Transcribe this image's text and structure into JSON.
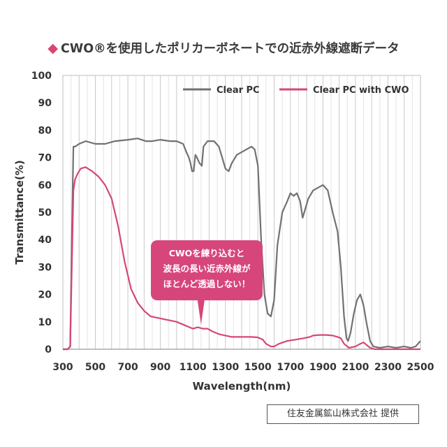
{
  "title": {
    "diamond_icon": "diamond-icon",
    "text": "CWO®を使用したポリカーボネートでの近赤外線遮断データ"
  },
  "credit": "住友金属鉱山株式会社 提供",
  "chart_data": {
    "type": "line",
    "title": "CWO®を使用したポリカーボネートでの近赤外線遮断データ",
    "xlabel": "Wavelength(nm)",
    "ylabel": "Transmittance(%)",
    "xlim": [
      300,
      2500
    ],
    "ylim": [
      0,
      100
    ],
    "xticks": [
      300,
      500,
      700,
      900,
      1100,
      1300,
      1500,
      1700,
      1900,
      2100,
      2300,
      2500
    ],
    "yticks": [
      0,
      10,
      20,
      30,
      40,
      50,
      60,
      70,
      80,
      90,
      100
    ],
    "grid": "vertical",
    "legend_position": "top-right",
    "series": [
      {
        "name": "Clear PC",
        "color": "#717171",
        "points": [
          [
            300,
            0
          ],
          [
            330,
            0
          ],
          [
            345,
            1
          ],
          [
            355,
            40
          ],
          [
            365,
            74
          ],
          [
            375,
            74
          ],
          [
            400,
            75
          ],
          [
            440,
            76
          ],
          [
            500,
            75
          ],
          [
            560,
            75
          ],
          [
            620,
            76
          ],
          [
            700,
            76.5
          ],
          [
            760,
            77
          ],
          [
            810,
            76
          ],
          [
            850,
            76
          ],
          [
            900,
            76.5
          ],
          [
            960,
            76
          ],
          [
            1000,
            76
          ],
          [
            1040,
            75
          ],
          [
            1060,
            72
          ],
          [
            1075,
            70
          ],
          [
            1085,
            68
          ],
          [
            1095,
            65
          ],
          [
            1105,
            65
          ],
          [
            1115,
            71
          ],
          [
            1125,
            70
          ],
          [
            1140,
            68
          ],
          [
            1155,
            67
          ],
          [
            1165,
            74
          ],
          [
            1190,
            76
          ],
          [
            1230,
            76
          ],
          [
            1260,
            74
          ],
          [
            1280,
            70
          ],
          [
            1300,
            66
          ],
          [
            1320,
            65
          ],
          [
            1340,
            68
          ],
          [
            1370,
            71
          ],
          [
            1400,
            72
          ],
          [
            1430,
            73
          ],
          [
            1460,
            74
          ],
          [
            1480,
            73
          ],
          [
            1500,
            67
          ],
          [
            1520,
            40
          ],
          [
            1540,
            20
          ],
          [
            1560,
            13
          ],
          [
            1580,
            12
          ],
          [
            1600,
            18
          ],
          [
            1620,
            38
          ],
          [
            1650,
            50
          ],
          [
            1680,
            54
          ],
          [
            1700,
            57
          ],
          [
            1720,
            56
          ],
          [
            1740,
            57
          ],
          [
            1760,
            54
          ],
          [
            1775,
            48
          ],
          [
            1790,
            51
          ],
          [
            1810,
            55
          ],
          [
            1840,
            58
          ],
          [
            1870,
            59
          ],
          [
            1900,
            60
          ],
          [
            1930,
            58
          ],
          [
            1960,
            50
          ],
          [
            1990,
            43
          ],
          [
            2010,
            30
          ],
          [
            2030,
            12
          ],
          [
            2045,
            4
          ],
          [
            2055,
            3
          ],
          [
            2070,
            6
          ],
          [
            2090,
            13
          ],
          [
            2110,
            18
          ],
          [
            2130,
            20
          ],
          [
            2150,
            16
          ],
          [
            2170,
            9
          ],
          [
            2190,
            3
          ],
          [
            2210,
            1
          ],
          [
            2250,
            0.5
          ],
          [
            2300,
            1
          ],
          [
            2350,
            0.5
          ],
          [
            2400,
            1
          ],
          [
            2440,
            0.5
          ],
          [
            2470,
            1
          ],
          [
            2500,
            3
          ]
        ]
      },
      {
        "name": "Clear PC with CWO",
        "color": "#d6467b",
        "points": [
          [
            300,
            0
          ],
          [
            330,
            0
          ],
          [
            345,
            1
          ],
          [
            355,
            30
          ],
          [
            365,
            58
          ],
          [
            375,
            62
          ],
          [
            390,
            64
          ],
          [
            410,
            66
          ],
          [
            440,
            66.5
          ],
          [
            480,
            65
          ],
          [
            520,
            63
          ],
          [
            560,
            60
          ],
          [
            600,
            55
          ],
          [
            640,
            45
          ],
          [
            680,
            32
          ],
          [
            720,
            22
          ],
          [
            760,
            17
          ],
          [
            800,
            14
          ],
          [
            840,
            12
          ],
          [
            880,
            11.5
          ],
          [
            920,
            11
          ],
          [
            960,
            10.5
          ],
          [
            1000,
            10
          ],
          [
            1040,
            9
          ],
          [
            1080,
            8
          ],
          [
            1100,
            7.5
          ],
          [
            1130,
            8
          ],
          [
            1160,
            7.5
          ],
          [
            1190,
            7.5
          ],
          [
            1220,
            6.5
          ],
          [
            1260,
            5.5
          ],
          [
            1300,
            5
          ],
          [
            1340,
            4.5
          ],
          [
            1400,
            4.5
          ],
          [
            1460,
            4.5
          ],
          [
            1500,
            4.3
          ],
          [
            1530,
            3.5
          ],
          [
            1550,
            2
          ],
          [
            1580,
            1
          ],
          [
            1600,
            1
          ],
          [
            1630,
            2
          ],
          [
            1680,
            3
          ],
          [
            1730,
            3.5
          ],
          [
            1780,
            4
          ],
          [
            1820,
            4.5
          ],
          [
            1840,
            5
          ],
          [
            1880,
            5.2
          ],
          [
            1920,
            5.2
          ],
          [
            1960,
            5
          ],
          [
            1990,
            4.5
          ],
          [
            2010,
            4
          ],
          [
            2030,
            2
          ],
          [
            2060,
            0.5
          ],
          [
            2100,
            1
          ],
          [
            2130,
            2
          ],
          [
            2150,
            2.5
          ],
          [
            2170,
            1.5
          ],
          [
            2190,
            0.5
          ],
          [
            2220,
            0
          ],
          [
            2300,
            0
          ],
          [
            2400,
            0
          ],
          [
            2500,
            0
          ]
        ]
      }
    ],
    "annotation": {
      "lines": [
        "CWOを練り込むと",
        "波長の長い近赤外線が",
        "ほとんど透過しない！"
      ],
      "bg_color": "#d6467b",
      "points_to": [
        1150,
        9
      ]
    }
  }
}
